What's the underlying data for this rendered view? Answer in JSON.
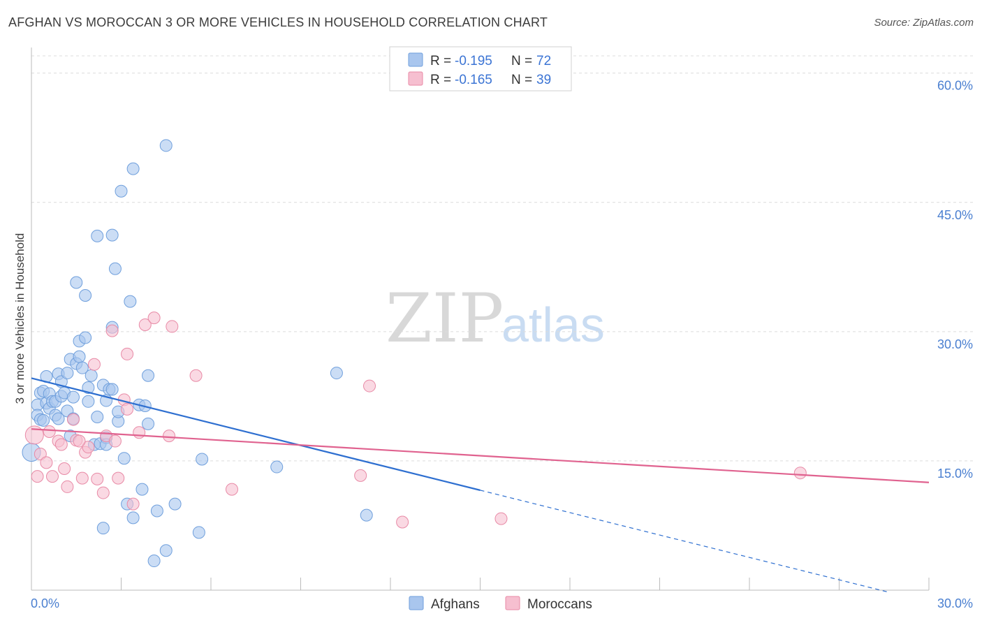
{
  "header": {
    "title": "AFGHAN VS MOROCCAN 3 OR MORE VEHICLES IN HOUSEHOLD CORRELATION CHART",
    "source": "Source: ZipAtlas.com"
  },
  "legend": {
    "rows": [
      {
        "r_label": "R = ",
        "r_value": "-0.195",
        "n_label": "N = ",
        "n_value": "72"
      },
      {
        "r_label": "R = ",
        "r_value": "-0.165",
        "n_label": "N = ",
        "n_value": "39"
      }
    ]
  },
  "watermark": {
    "zip": "ZIP",
    "atlas": "atlas"
  },
  "colors": {
    "afghan_fill": "#a9c6ee",
    "afghan_stroke": "#6f9fdc",
    "afghan_line": "#2e6fd0",
    "moroccan_fill": "#f6bfd0",
    "moroccan_stroke": "#e88aa6",
    "moroccan_line": "#e0628f",
    "grid": "#dcdcdc",
    "tick_label": "#4a7fd0"
  },
  "chart_data": {
    "type": "scatter",
    "title": "AFGHAN VS MOROCCAN 3 OR MORE VEHICLES IN HOUSEHOLD CORRELATION CHART",
    "xlabel": "",
    "ylabel": "3 or more Vehicles in Household",
    "xlim": [
      0,
      30
    ],
    "ylim": [
      0,
      62
    ],
    "x_tick_labels": [
      {
        "value": 0,
        "label": "0.0%"
      },
      {
        "value": 30,
        "label": "30.0%"
      }
    ],
    "y_tick_labels": [
      {
        "value": 15,
        "label": "15.0%"
      },
      {
        "value": 30,
        "label": "30.0%"
      },
      {
        "value": 45,
        "label": "45.0%"
      },
      {
        "value": 60,
        "label": "60.0%"
      }
    ],
    "series": [
      {
        "name": "Afghans",
        "points": [
          [
            0.0,
            16.0
          ],
          [
            0.2,
            21.5
          ],
          [
            0.2,
            20.3
          ],
          [
            0.3,
            19.8
          ],
          [
            0.3,
            22.9
          ],
          [
            0.4,
            23.1
          ],
          [
            0.4,
            19.7
          ],
          [
            0.5,
            21.7
          ],
          [
            0.5,
            24.8
          ],
          [
            0.6,
            22.8
          ],
          [
            0.6,
            21.1
          ],
          [
            0.7,
            21.9
          ],
          [
            0.8,
            20.3
          ],
          [
            0.8,
            21.9
          ],
          [
            0.9,
            19.9
          ],
          [
            0.9,
            25.1
          ],
          [
            1.0,
            22.5
          ],
          [
            1.0,
            24.2
          ],
          [
            1.1,
            22.9
          ],
          [
            1.2,
            25.2
          ],
          [
            1.2,
            20.8
          ],
          [
            1.3,
            17.9
          ],
          [
            1.3,
            26.8
          ],
          [
            1.4,
            22.4
          ],
          [
            1.4,
            19.9
          ],
          [
            1.5,
            26.3
          ],
          [
            1.5,
            35.7
          ],
          [
            1.6,
            27.1
          ],
          [
            1.6,
            28.9
          ],
          [
            1.7,
            25.8
          ],
          [
            1.8,
            29.3
          ],
          [
            1.8,
            34.2
          ],
          [
            1.9,
            23.5
          ],
          [
            1.9,
            21.9
          ],
          [
            2.0,
            24.9
          ],
          [
            2.1,
            16.9
          ],
          [
            2.2,
            41.1
          ],
          [
            2.2,
            20.1
          ],
          [
            2.3,
            17.0
          ],
          [
            2.4,
            7.2
          ],
          [
            2.4,
            23.8
          ],
          [
            2.5,
            17.7
          ],
          [
            2.5,
            22.0
          ],
          [
            2.6,
            23.3
          ],
          [
            2.7,
            30.5
          ],
          [
            2.7,
            41.2
          ],
          [
            2.8,
            37.3
          ],
          [
            2.9,
            19.6
          ],
          [
            2.9,
            20.7
          ],
          [
            3.0,
            46.3
          ],
          [
            3.1,
            15.3
          ],
          [
            3.2,
            10.0
          ],
          [
            3.3,
            33.5
          ],
          [
            3.4,
            48.9
          ],
          [
            3.4,
            8.4
          ],
          [
            3.6,
            21.5
          ],
          [
            3.7,
            11.7
          ],
          [
            3.8,
            21.4
          ],
          [
            3.9,
            19.3
          ],
          [
            3.9,
            24.9
          ],
          [
            4.1,
            3.4
          ],
          [
            4.2,
            9.2
          ],
          [
            4.5,
            4.6
          ],
          [
            4.5,
            51.6
          ],
          [
            4.8,
            10.0
          ],
          [
            5.6,
            6.7
          ],
          [
            5.7,
            15.2
          ],
          [
            8.2,
            14.3
          ],
          [
            10.2,
            25.2
          ],
          [
            11.2,
            8.7
          ],
          [
            2.7,
            23.3
          ],
          [
            2.5,
            16.9
          ]
        ]
      },
      {
        "name": "Moroccans",
        "points": [
          [
            0.1,
            18.0
          ],
          [
            0.2,
            13.2
          ],
          [
            0.3,
            15.8
          ],
          [
            0.5,
            14.8
          ],
          [
            0.6,
            18.4
          ],
          [
            0.7,
            13.2
          ],
          [
            0.9,
            17.3
          ],
          [
            1.0,
            16.9
          ],
          [
            1.1,
            14.1
          ],
          [
            1.2,
            12.0
          ],
          [
            1.4,
            19.8
          ],
          [
            1.5,
            17.4
          ],
          [
            1.7,
            13.0
          ],
          [
            1.8,
            16.0
          ],
          [
            1.9,
            16.6
          ],
          [
            2.1,
            26.2
          ],
          [
            2.2,
            12.9
          ],
          [
            2.4,
            11.3
          ],
          [
            2.5,
            17.9
          ],
          [
            2.7,
            30.1
          ],
          [
            2.8,
            17.3
          ],
          [
            2.9,
            13.0
          ],
          [
            3.1,
            22.1
          ],
          [
            3.2,
            21.0
          ],
          [
            3.2,
            27.4
          ],
          [
            3.4,
            10.0
          ],
          [
            3.6,
            18.3
          ],
          [
            3.8,
            30.8
          ],
          [
            4.1,
            31.6
          ],
          [
            4.6,
            17.9
          ],
          [
            4.7,
            30.6
          ],
          [
            5.5,
            24.9
          ],
          [
            6.7,
            11.7
          ],
          [
            11.3,
            23.7
          ],
          [
            11.0,
            13.3
          ],
          [
            12.4,
            7.9
          ],
          [
            15.7,
            8.3
          ],
          [
            25.7,
            13.6
          ],
          [
            1.6,
            17.3
          ]
        ]
      }
    ],
    "trend_lines": [
      {
        "name": "Afghans",
        "x": [
          0,
          15
        ],
        "y": [
          24.6,
          11.6
        ],
        "dashed_extension_x": [
          15,
          28.7
        ]
      },
      {
        "name": "Moroccans",
        "x": [
          0,
          30
        ],
        "y": [
          18.7,
          12.5
        ]
      }
    ],
    "legend": {
      "entries": [
        "Afghans",
        "Moroccans"
      ]
    }
  }
}
